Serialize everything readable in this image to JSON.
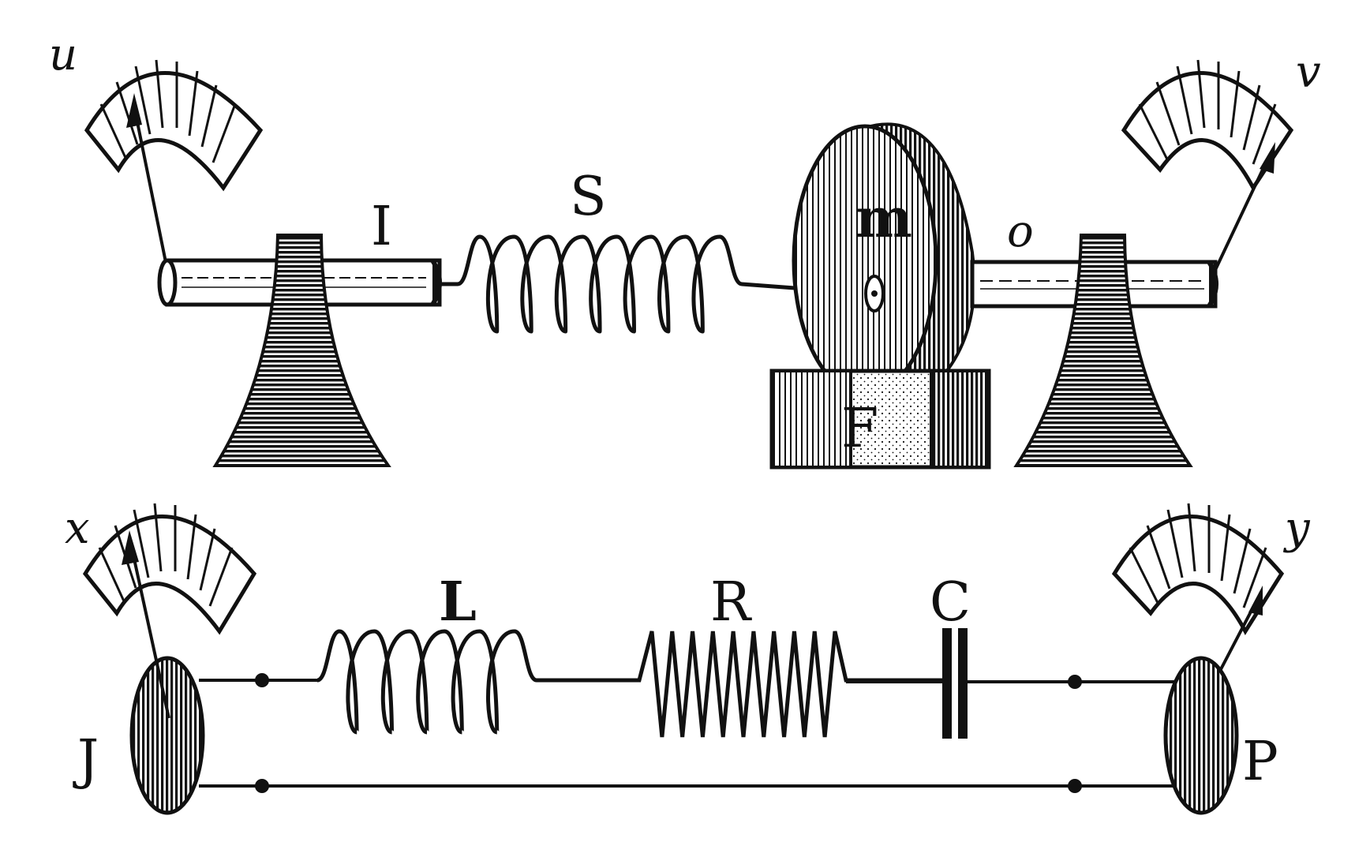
{
  "labels": {
    "u": "u",
    "v": "v",
    "I": "I",
    "S": "S",
    "m": "m",
    "o": "o",
    "F": "F",
    "x": "x",
    "y": "y",
    "L": "L",
    "R": "R",
    "C": "C",
    "J": "J",
    "P": "P"
  },
  "colors": {
    "ink": "#111111",
    "paper": "#ffffff"
  }
}
